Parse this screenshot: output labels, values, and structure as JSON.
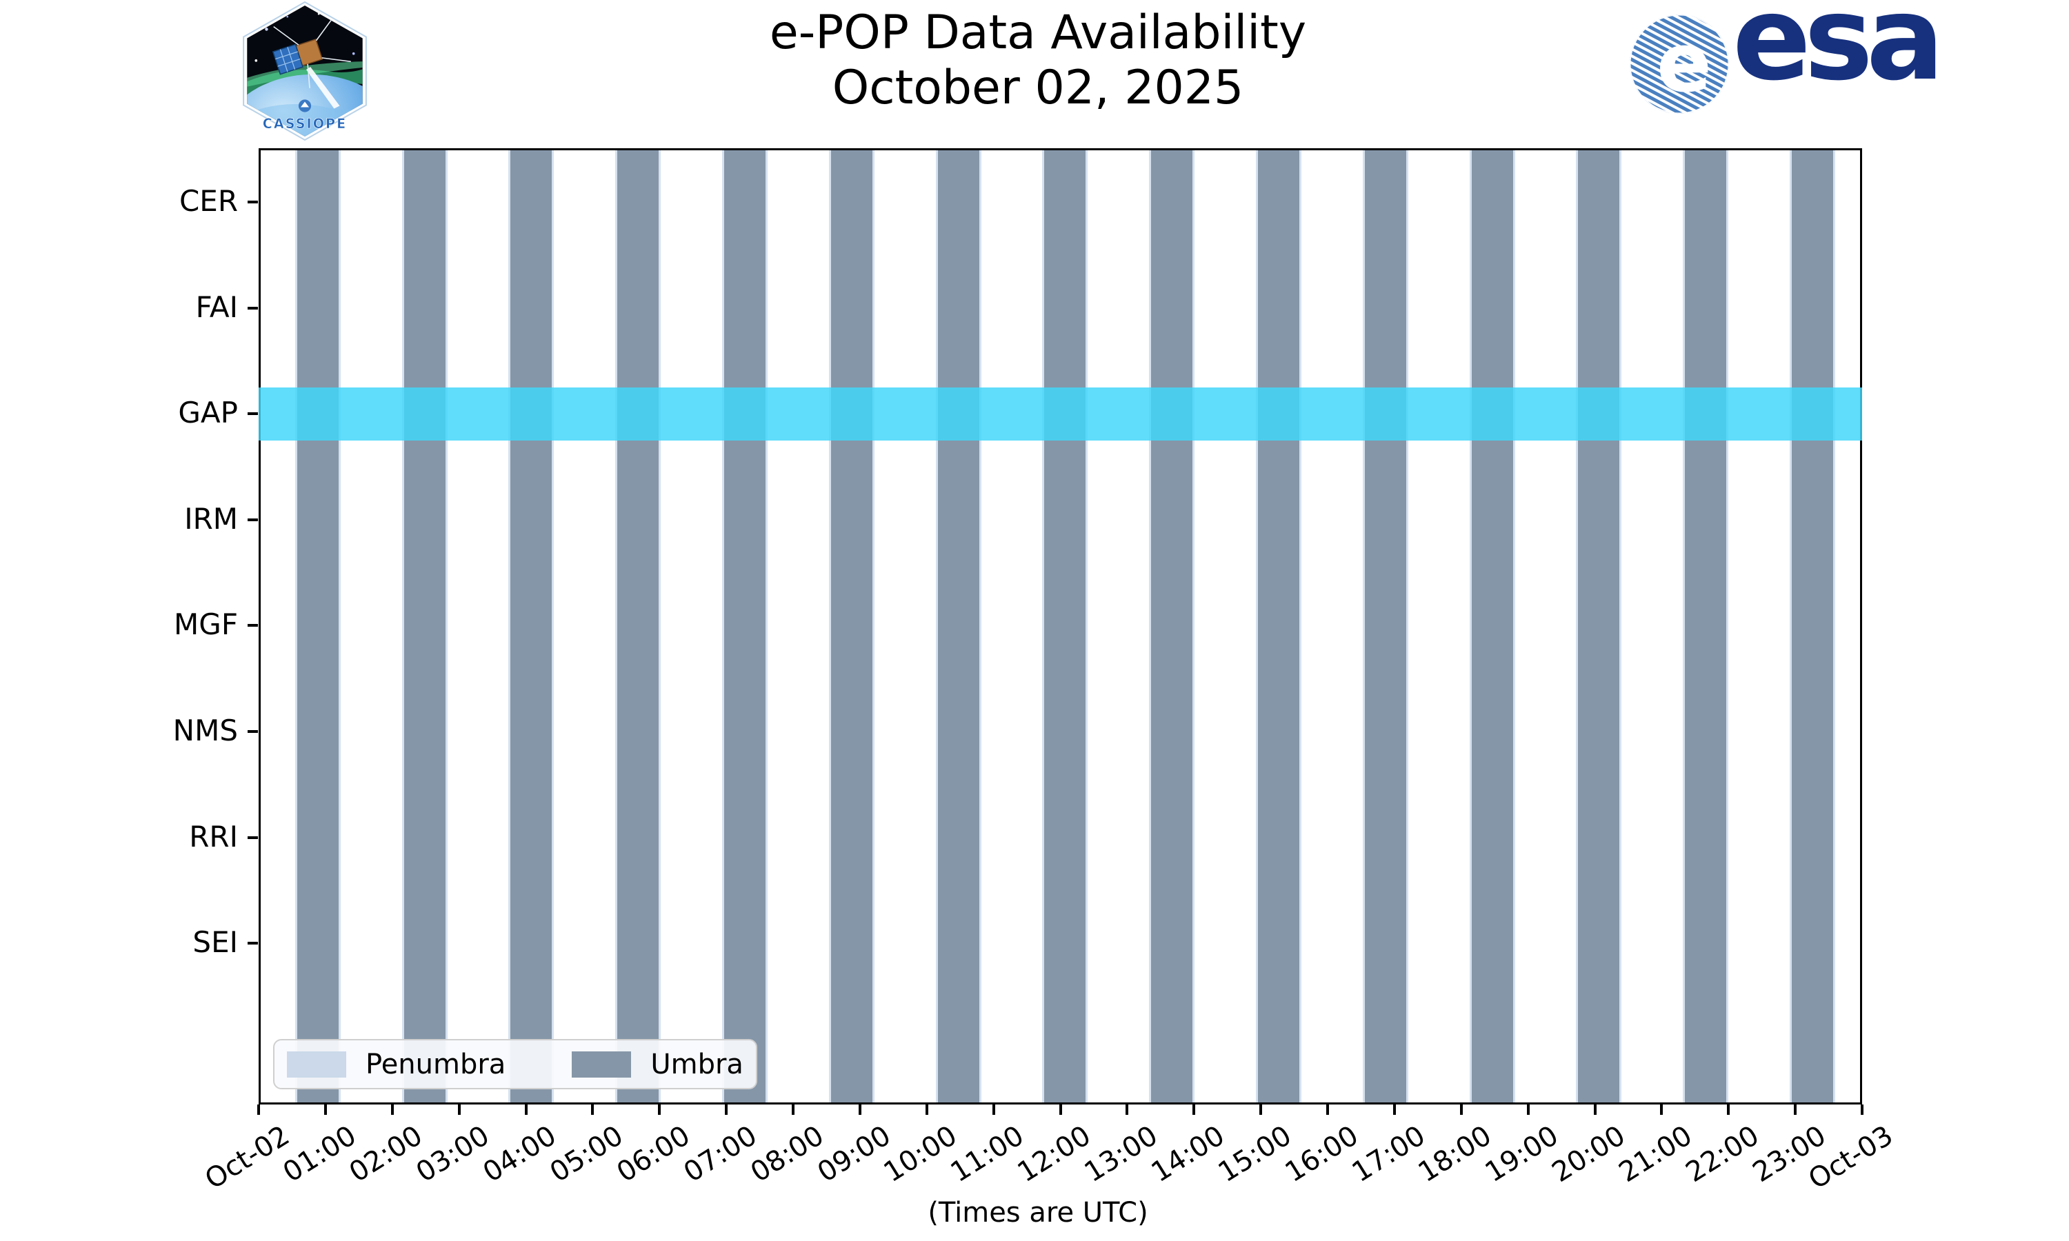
{
  "header": {
    "title": "e-POP Data Availability",
    "subtitle": "October 02, 2025",
    "cassiope_patch_label": "CASSIOPE",
    "esa_logo_text": "esa"
  },
  "chart_data": {
    "type": "heatmap",
    "title": "e-POP Data Availability",
    "subtitle": "October 02, 2025",
    "xlabel": "(Times are UTC)",
    "x_tick_labels": [
      "Oct-02",
      "01:00",
      "02:00",
      "03:00",
      "04:00",
      "05:00",
      "06:00",
      "07:00",
      "08:00",
      "09:00",
      "10:00",
      "11:00",
      "12:00",
      "13:00",
      "14:00",
      "15:00",
      "16:00",
      "17:00",
      "18:00",
      "19:00",
      "20:00",
      "21:00",
      "22:00",
      "23:00",
      "Oct-03"
    ],
    "x_range_hours": [
      0,
      24
    ],
    "instruments": [
      "CER",
      "FAI",
      "GAP",
      "IRM",
      "MGF",
      "NMS",
      "RRI",
      "SEI"
    ],
    "availability_intervals": {
      "CER": [],
      "FAI": [],
      "GAP": [
        [
          0,
          24
        ]
      ],
      "IRM": [],
      "MGF": [],
      "NMS": [],
      "RRI": [],
      "SEI": []
    },
    "umbra_intervals_hours": [
      [
        0.58,
        1.2
      ],
      [
        2.18,
        2.8
      ],
      [
        3.77,
        4.39
      ],
      [
        5.37,
        5.99
      ],
      [
        6.97,
        7.59
      ],
      [
        8.57,
        9.19
      ],
      [
        10.17,
        10.79
      ],
      [
        11.76,
        12.38
      ],
      [
        13.36,
        13.98
      ],
      [
        14.96,
        15.58
      ],
      [
        16.56,
        17.18
      ],
      [
        18.16,
        18.78
      ],
      [
        19.75,
        20.37
      ],
      [
        21.35,
        21.97
      ],
      [
        22.95,
        23.57
      ]
    ],
    "penumbra_edge_hours": 0.035,
    "legend": {
      "position": "lower left",
      "items": [
        {
          "label": "Penumbra",
          "color": "#cbd9ea"
        },
        {
          "label": "Umbra",
          "color": "#8596a8"
        }
      ]
    },
    "colors": {
      "umbra": "#8596a8",
      "penumbra": "#d6e1ef",
      "gap_band": "rgba(66,214,249,0.84)",
      "axis": "#000000",
      "esa_blue": "#17317f",
      "esa_globe_blue": "#4a80c0"
    },
    "grid": false
  }
}
